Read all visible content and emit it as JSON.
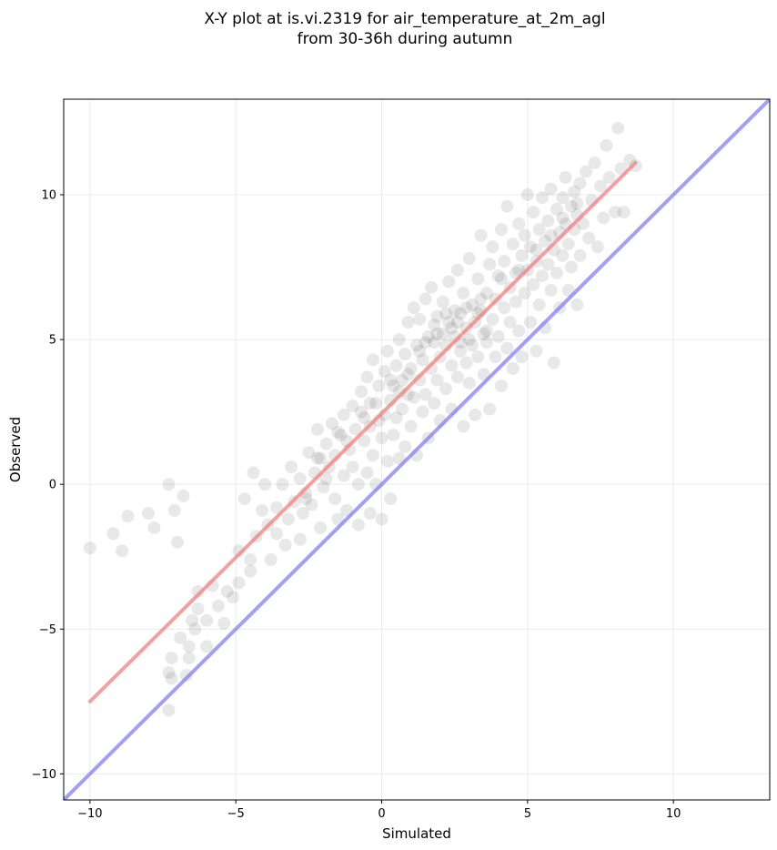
{
  "chart_data": {
    "type": "scatter",
    "title_line1": "X-Y plot at is.vi.2319 for air_temperature_at_2m_agl",
    "title_line2": "from 30-36h during autumn",
    "xlabel": "Simulated",
    "ylabel": "Observed",
    "xlim": [
      -10.9,
      13.3
    ],
    "ylim": [
      -10.9,
      13.3
    ],
    "xticks": [
      -10,
      -5,
      0,
      5,
      10
    ],
    "yticks": [
      -10,
      -5,
      0,
      5,
      10
    ],
    "xtick_labels": [
      "−10",
      "−5",
      "0",
      "5",
      "10"
    ],
    "ytick_labels": [
      "−10",
      "−5",
      "0",
      "5",
      "10"
    ],
    "grid": true,
    "point_color": "#000000",
    "fit_line": {
      "color": "#f08080",
      "x": [
        -10,
        8.7
      ],
      "y": [
        -7.5,
        11.1
      ]
    },
    "identity_line": {
      "color": "#8080f0",
      "x": [
        -10.9,
        13.3
      ],
      "y": [
        -10.9,
        13.3
      ]
    },
    "points": [
      [
        -10.0,
        -2.2
      ],
      [
        -9.2,
        -1.7
      ],
      [
        -8.9,
        -2.3
      ],
      [
        -8.7,
        -1.1
      ],
      [
        -8.0,
        -1.0
      ],
      [
        -7.8,
        -1.5
      ],
      [
        -7.3,
        0.0
      ],
      [
        -7.0,
        -2.0
      ],
      [
        -7.1,
        -0.9
      ],
      [
        -6.8,
        -0.4
      ],
      [
        -7.3,
        -7.8
      ],
      [
        -7.3,
        -6.5
      ],
      [
        -7.2,
        -6.7
      ],
      [
        -7.2,
        -6.0
      ],
      [
        -6.9,
        -5.3
      ],
      [
        -6.7,
        -6.6
      ],
      [
        -6.6,
        -6.0
      ],
      [
        -6.6,
        -5.6
      ],
      [
        -6.4,
        -5.0
      ],
      [
        -6.5,
        -4.7
      ],
      [
        -6.3,
        -4.3
      ],
      [
        -6.3,
        -3.7
      ],
      [
        -6.0,
        -5.6
      ],
      [
        -6.0,
        -4.7
      ],
      [
        -5.8,
        -3.5
      ],
      [
        -5.6,
        -4.2
      ],
      [
        -5.3,
        -3.7
      ],
      [
        -5.4,
        -4.8
      ],
      [
        -5.1,
        -3.9
      ],
      [
        -4.9,
        -3.4
      ],
      [
        -4.9,
        -2.3
      ],
      [
        -4.7,
        -0.5
      ],
      [
        -4.4,
        0.4
      ],
      [
        -4.5,
        -3.0
      ],
      [
        -4.5,
        -2.6
      ],
      [
        -4.3,
        -1.8
      ],
      [
        -4.1,
        -0.9
      ],
      [
        -4.0,
        0.0
      ],
      [
        -3.9,
        -1.4
      ],
      [
        -3.8,
        -2.6
      ],
      [
        -3.6,
        -1.7
      ],
      [
        -3.6,
        -0.8
      ],
      [
        -3.4,
        0.0
      ],
      [
        -3.3,
        -2.1
      ],
      [
        -3.2,
        -1.2
      ],
      [
        -3.1,
        0.6
      ],
      [
        -3.0,
        -0.6
      ],
      [
        -2.8,
        -1.9
      ],
      [
        -2.8,
        0.2
      ],
      [
        -2.7,
        -1.0
      ],
      [
        -2.6,
        -0.3
      ],
      [
        -2.5,
        1.1
      ],
      [
        -2.4,
        -0.7
      ],
      [
        -2.3,
        0.4
      ],
      [
        -2.2,
        1.9
      ],
      [
        -2.1,
        -1.5
      ],
      [
        -2.1,
        0.9
      ],
      [
        -2.0,
        -0.1
      ],
      [
        -1.9,
        1.4
      ],
      [
        -1.8,
        0.6
      ],
      [
        -1.7,
        2.1
      ],
      [
        -1.6,
        -0.5
      ],
      [
        -1.6,
        1.0
      ],
      [
        -1.5,
        -1.2
      ],
      [
        -1.4,
        1.7
      ],
      [
        -1.3,
        0.3
      ],
      [
        -1.3,
        2.4
      ],
      [
        -1.2,
        -0.9
      ],
      [
        -1.1,
        1.2
      ],
      [
        -1.0,
        2.7
      ],
      [
        -1.0,
        0.6
      ],
      [
        -0.9,
        1.9
      ],
      [
        -0.8,
        -1.4
      ],
      [
        -0.8,
        0.0
      ],
      [
        -0.7,
        3.2
      ],
      [
        -0.6,
        1.5
      ],
      [
        -0.6,
        2.3
      ],
      [
        -0.5,
        0.4
      ],
      [
        -0.5,
        3.7
      ],
      [
        -0.4,
        -1.0
      ],
      [
        -0.4,
        2.0
      ],
      [
        -0.3,
        1.0
      ],
      [
        -0.3,
        4.3
      ],
      [
        -0.2,
        2.8
      ],
      [
        -0.2,
        0.0
      ],
      [
        -0.1,
        3.4
      ],
      [
        0.0,
        1.6
      ],
      [
        0.0,
        -1.2
      ],
      [
        0.1,
        2.4
      ],
      [
        0.1,
        3.9
      ],
      [
        0.2,
        0.8
      ],
      [
        0.2,
        4.6
      ],
      [
        0.3,
        2.9
      ],
      [
        0.3,
        -0.5
      ],
      [
        0.4,
        3.4
      ],
      [
        0.4,
        1.7
      ],
      [
        0.5,
        4.1
      ],
      [
        0.5,
        2.3
      ],
      [
        0.6,
        5.0
      ],
      [
        0.6,
        0.9
      ],
      [
        0.7,
        3.6
      ],
      [
        0.7,
        2.6
      ],
      [
        0.8,
        4.5
      ],
      [
        0.8,
        1.3
      ],
      [
        0.9,
        3.1
      ],
      [
        0.9,
        5.6
      ],
      [
        1.0,
        2.0
      ],
      [
        1.0,
        4.0
      ],
      [
        1.1,
        6.1
      ],
      [
        1.1,
        3.0
      ],
      [
        1.2,
        1.0
      ],
      [
        1.2,
        4.8
      ],
      [
        1.3,
        3.6
      ],
      [
        1.3,
        5.7
      ],
      [
        1.4,
        2.5
      ],
      [
        1.4,
        4.3
      ],
      [
        1.5,
        6.4
      ],
      [
        1.5,
        3.1
      ],
      [
        1.6,
        1.6
      ],
      [
        1.6,
        5.1
      ],
      [
        1.7,
        4.0
      ],
      [
        1.7,
        6.8
      ],
      [
        1.8,
        2.8
      ],
      [
        1.8,
        4.9
      ],
      [
        1.9,
        3.6
      ],
      [
        1.9,
        5.8
      ],
      [
        2.0,
        2.2
      ],
      [
        2.0,
        4.4
      ],
      [
        2.1,
        6.3
      ],
      [
        2.1,
        5.2
      ],
      [
        2.2,
        3.3
      ],
      [
        2.2,
        4.8
      ],
      [
        2.3,
        7.0
      ],
      [
        2.3,
        5.6
      ],
      [
        2.4,
        2.6
      ],
      [
        2.4,
        4.1
      ],
      [
        2.5,
        6.0
      ],
      [
        2.5,
        5.1
      ],
      [
        2.6,
        3.7
      ],
      [
        2.6,
        7.4
      ],
      [
        2.7,
        4.6
      ],
      [
        2.7,
        5.9
      ],
      [
        2.8,
        2.0
      ],
      [
        2.8,
        6.6
      ],
      [
        2.9,
        4.2
      ],
      [
        2.9,
        5.4
      ],
      [
        3.0,
        7.8
      ],
      [
        3.0,
        3.5
      ],
      [
        3.1,
        6.2
      ],
      [
        3.1,
        4.8
      ],
      [
        3.2,
        5.6
      ],
      [
        3.2,
        2.4
      ],
      [
        3.3,
        7.1
      ],
      [
        3.3,
        4.4
      ],
      [
        3.4,
        6.0
      ],
      [
        3.4,
        8.6
      ],
      [
        3.5,
        5.2
      ],
      [
        3.5,
        3.8
      ],
      [
        3.6,
        6.6
      ],
      [
        3.6,
        4.9
      ],
      [
        3.7,
        7.6
      ],
      [
        3.7,
        2.6
      ],
      [
        3.8,
        5.7
      ],
      [
        3.8,
        8.2
      ],
      [
        3.9,
        4.4
      ],
      [
        3.9,
        6.4
      ],
      [
        4.0,
        7.2
      ],
      [
        4.0,
        5.1
      ],
      [
        4.1,
        3.4
      ],
      [
        4.1,
        8.8
      ],
      [
        4.2,
        6.1
      ],
      [
        4.2,
        7.7
      ],
      [
        4.3,
        4.7
      ],
      [
        4.3,
        9.6
      ],
      [
        4.4,
        6.8
      ],
      [
        4.4,
        5.6
      ],
      [
        4.5,
        8.3
      ],
      [
        4.5,
        4.0
      ],
      [
        4.6,
        7.3
      ],
      [
        4.6,
        6.3
      ],
      [
        4.7,
        9.0
      ],
      [
        4.7,
        5.3
      ],
      [
        4.8,
        7.9
      ],
      [
        4.8,
        4.4
      ],
      [
        4.9,
        8.6
      ],
      [
        4.9,
        6.6
      ],
      [
        5.0,
        7.4
      ],
      [
        5.0,
        10.0
      ],
      [
        5.1,
        5.6
      ],
      [
        5.1,
        8.2
      ],
      [
        5.2,
        6.9
      ],
      [
        5.2,
        9.4
      ],
      [
        5.3,
        4.6
      ],
      [
        5.3,
        7.7
      ],
      [
        5.4,
        8.8
      ],
      [
        5.4,
        6.2
      ],
      [
        5.5,
        9.9
      ],
      [
        5.5,
        7.2
      ],
      [
        5.6,
        8.4
      ],
      [
        5.6,
        5.4
      ],
      [
        5.7,
        9.1
      ],
      [
        5.7,
        7.6
      ],
      [
        5.8,
        6.7
      ],
      [
        5.8,
        10.2
      ],
      [
        5.9,
        8.1
      ],
      [
        5.9,
        4.2
      ],
      [
        6.0,
        9.5
      ],
      [
        6.0,
        7.3
      ],
      [
        6.1,
        8.7
      ],
      [
        6.1,
        6.1
      ],
      [
        6.2,
        9.9
      ],
      [
        6.2,
        7.9
      ],
      [
        6.3,
        9.0
      ],
      [
        6.3,
        10.6
      ],
      [
        6.4,
        8.3
      ],
      [
        6.4,
        6.7
      ],
      [
        6.5,
        9.6
      ],
      [
        6.5,
        7.5
      ],
      [
        6.6,
        10.1
      ],
      [
        6.6,
        8.8
      ],
      [
        6.7,
        6.2
      ],
      [
        6.7,
        9.3
      ],
      [
        6.8,
        10.4
      ],
      [
        6.8,
        7.9
      ],
      [
        6.9,
        9.0
      ],
      [
        7.0,
        10.8
      ],
      [
        7.1,
        8.5
      ],
      [
        7.2,
        9.8
      ],
      [
        7.3,
        11.1
      ],
      [
        7.4,
        8.2
      ],
      [
        7.5,
        10.3
      ],
      [
        7.6,
        9.2
      ],
      [
        7.7,
        11.7
      ],
      [
        7.8,
        10.6
      ],
      [
        8.0,
        9.4
      ],
      [
        8.1,
        12.3
      ],
      [
        8.2,
        10.9
      ],
      [
        8.3,
        9.4
      ],
      [
        8.5,
        11.2
      ],
      [
        8.7,
        11.0
      ],
      [
        -2.6,
        -0.5
      ],
      [
        -1.9,
        0.2
      ],
      [
        -1.2,
        1.5
      ],
      [
        -0.7,
        2.5
      ],
      [
        -0.1,
        2.2
      ],
      [
        0.6,
        3.2
      ],
      [
        1.3,
        4.6
      ],
      [
        1.9,
        5.2
      ],
      [
        2.4,
        5.4
      ],
      [
        2.9,
        6.1
      ],
      [
        3.3,
        5.9
      ],
      [
        3.6,
        5.3
      ],
      [
        4.1,
        7.1
      ],
      [
        4.7,
        7.4
      ],
      [
        5.3,
        8.1
      ],
      [
        5.8,
        8.6
      ],
      [
        6.2,
        9.2
      ],
      [
        6.7,
        9.7
      ],
      [
        1.5,
        4.9
      ],
      [
        2.6,
        5.6
      ],
      [
        2.2,
        5.9
      ],
      [
        3.0,
        5.0
      ],
      [
        1.8,
        5.5
      ],
      [
        0.9,
        3.8
      ],
      [
        0.3,
        3.6
      ],
      [
        -0.4,
        2.8
      ],
      [
        -1.5,
        1.8
      ],
      [
        -2.2,
        0.9
      ],
      [
        2.7,
        4.9
      ],
      [
        3.4,
        6.4
      ]
    ]
  }
}
